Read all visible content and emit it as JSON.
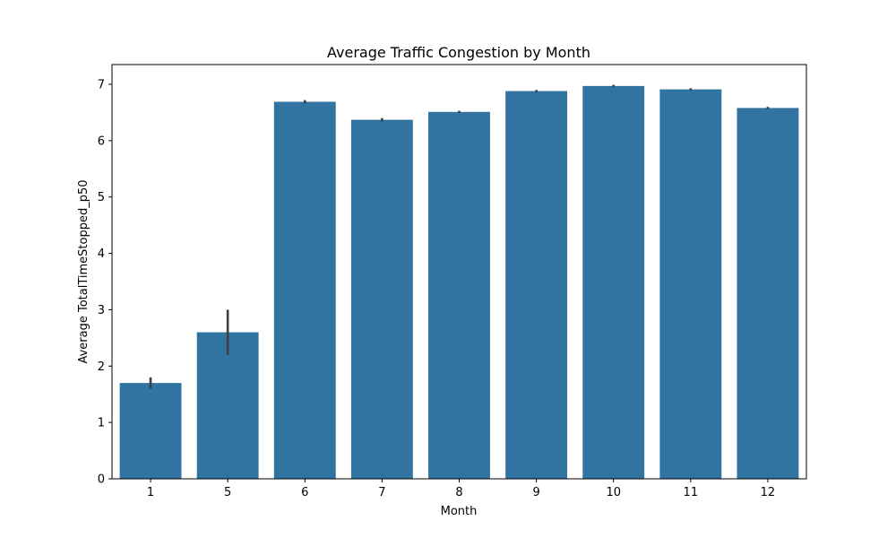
{
  "chart_data": {
    "type": "bar",
    "title": "Average Traffic Congestion by Month",
    "xlabel": "Month",
    "ylabel": "Average TotalTimeStopped_p50",
    "categories": [
      "1",
      "5",
      "6",
      "7",
      "8",
      "9",
      "10",
      "11",
      "12"
    ],
    "values": [
      1.7,
      2.6,
      6.69,
      6.37,
      6.51,
      6.88,
      6.97,
      6.91,
      6.58
    ],
    "error_low": [
      1.6,
      2.2,
      6.66,
      6.34,
      6.49,
      6.86,
      6.95,
      6.89,
      6.56
    ],
    "error_high": [
      1.8,
      3.0,
      6.72,
      6.4,
      6.53,
      6.9,
      6.99,
      6.93,
      6.6
    ],
    "ylim": [
      0,
      7.35
    ],
    "yticks": [
      "0",
      "1",
      "2",
      "3",
      "4",
      "5",
      "6",
      "7"
    ],
    "grid": false,
    "bar_color": "#3274a1",
    "error_color": "#3f3f3f"
  }
}
